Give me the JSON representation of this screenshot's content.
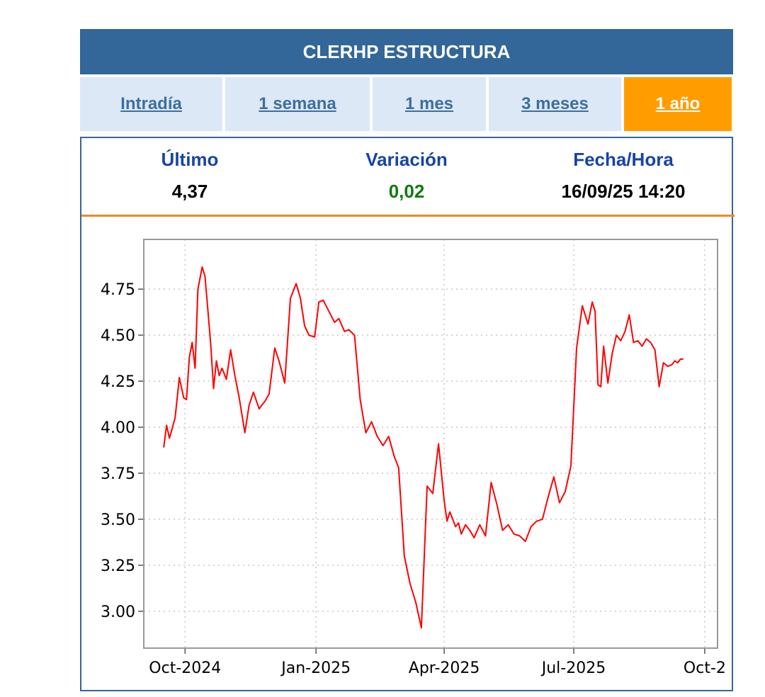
{
  "header": {
    "title": "CLERHP ESTRUCTURA"
  },
  "tabs": [
    {
      "label": "Intradía",
      "active": false
    },
    {
      "label": "1 semana",
      "active": false
    },
    {
      "label": "1 mes",
      "active": false
    },
    {
      "label": "3 meses",
      "active": false
    },
    {
      "label": "1 año",
      "active": true
    }
  ],
  "stats": {
    "last": {
      "label": "Último",
      "value": "4,37"
    },
    "change": {
      "label": "Variación",
      "value": "0,02"
    },
    "datetime": {
      "label": "Fecha/Hora",
      "value": "16/09/25 14:20"
    }
  },
  "colors": {
    "header_bg": "#336699",
    "tab_bg": "#dce8f6",
    "tab_active_bg": "#ff9d00",
    "line": "#ff0000",
    "variation_positive": "#0f7a0f",
    "separator": "#f08a24"
  },
  "chart_data": {
    "type": "line",
    "title": "",
    "xlabel": "",
    "ylabel": "",
    "grid": true,
    "ylim": [
      2.8,
      5.02
    ],
    "xlim": [
      "2024-09-02",
      "2025-10-10"
    ],
    "x_ticks": [
      {
        "date": "2024-10-01",
        "label": "Oct-2024"
      },
      {
        "date": "2025-01-01",
        "label": "Jan-2025"
      },
      {
        "date": "2025-04-01",
        "label": "Apr-2025"
      },
      {
        "date": "2025-07-01",
        "label": "Jul-2025"
      },
      {
        "date": "2025-10-01",
        "label": "Oct-2"
      }
    ],
    "y_ticks": [
      {
        "value": 3.0,
        "label": "3.00"
      },
      {
        "value": 3.25,
        "label": "3.25"
      },
      {
        "value": 3.5,
        "label": "3.50"
      },
      {
        "value": 3.75,
        "label": "3.75"
      },
      {
        "value": 4.0,
        "label": "4.00"
      },
      {
        "value": 4.25,
        "label": "4.25"
      },
      {
        "value": 4.5,
        "label": "4.50"
      },
      {
        "value": 4.75,
        "label": "4.75"
      }
    ],
    "series": [
      {
        "x": [
          "2024-09-16",
          "2024-09-18",
          "2024-09-20",
          "2024-09-24",
          "2024-09-27",
          "2024-09-30",
          "2024-10-02",
          "2024-10-04",
          "2024-10-06",
          "2024-10-08",
          "2024-10-10",
          "2024-10-13",
          "2024-10-15",
          "2024-10-17",
          "2024-10-19",
          "2024-10-21",
          "2024-10-23",
          "2024-10-25",
          "2024-10-27",
          "2024-10-30",
          "2024-11-02",
          "2024-11-05",
          "2024-11-08",
          "2024-11-12",
          "2024-11-15",
          "2024-11-18",
          "2024-11-22",
          "2024-11-26",
          "2024-11-29",
          "2024-12-03",
          "2024-12-06",
          "2024-12-10",
          "2024-12-14",
          "2024-12-18",
          "2024-12-21",
          "2024-12-24",
          "2024-12-27",
          "2024-12-31",
          "2025-01-03",
          "2025-01-06",
          "2025-01-10",
          "2025-01-14",
          "2025-01-17",
          "2025-01-21",
          "2025-01-24",
          "2025-01-28",
          "2025-02-01",
          "2025-02-05",
          "2025-02-09",
          "2025-02-13",
          "2025-02-17",
          "2025-02-21",
          "2025-02-25",
          "2025-02-28",
          "2025-03-04",
          "2025-03-08",
          "2025-03-12",
          "2025-03-16",
          "2025-03-20",
          "2025-03-24",
          "2025-03-28",
          "2025-04-01",
          "2025-04-03",
          "2025-04-05",
          "2025-04-07",
          "2025-04-09",
          "2025-04-11",
          "2025-04-13",
          "2025-04-16",
          "2025-04-19",
          "2025-04-22",
          "2025-04-26",
          "2025-04-30",
          "2025-05-04",
          "2025-05-08",
          "2025-05-12",
          "2025-05-16",
          "2025-05-20",
          "2025-05-24",
          "2025-05-28",
          "2025-06-01",
          "2025-06-05",
          "2025-06-09",
          "2025-06-13",
          "2025-06-17",
          "2025-06-21",
          "2025-06-25",
          "2025-06-29",
          "2025-07-03",
          "2025-07-07",
          "2025-07-11",
          "2025-07-14",
          "2025-07-16",
          "2025-07-18",
          "2025-07-20",
          "2025-07-22",
          "2025-07-25",
          "2025-07-28",
          "2025-07-31",
          "2025-08-03",
          "2025-08-06",
          "2025-08-09",
          "2025-08-12",
          "2025-08-15",
          "2025-08-18",
          "2025-08-21",
          "2025-08-24",
          "2025-08-27",
          "2025-08-30",
          "2025-09-02",
          "2025-09-05",
          "2025-09-08",
          "2025-09-10",
          "2025-09-12",
          "2025-09-14",
          "2025-09-16"
        ],
        "values": [
          3.89,
          4.01,
          3.94,
          4.05,
          4.27,
          4.16,
          4.15,
          4.38,
          4.46,
          4.32,
          4.75,
          4.87,
          4.82,
          4.64,
          4.45,
          4.21,
          4.36,
          4.28,
          4.32,
          4.26,
          4.42,
          4.28,
          4.16,
          3.97,
          4.12,
          4.19,
          4.1,
          4.14,
          4.18,
          4.43,
          4.36,
          4.24,
          4.7,
          4.78,
          4.7,
          4.55,
          4.5,
          4.49,
          4.68,
          4.69,
          4.63,
          4.57,
          4.59,
          4.52,
          4.53,
          4.5,
          4.15,
          3.97,
          4.03,
          3.95,
          3.9,
          3.95,
          3.84,
          3.78,
          3.3,
          3.15,
          3.05,
          2.91,
          3.68,
          3.64,
          3.91,
          3.6,
          3.49,
          3.54,
          3.5,
          3.46,
          3.48,
          3.42,
          3.47,
          3.44,
          3.4,
          3.47,
          3.41,
          3.7,
          3.58,
          3.44,
          3.47,
          3.42,
          3.41,
          3.38,
          3.46,
          3.49,
          3.5,
          3.62,
          3.73,
          3.59,
          3.65,
          3.79,
          4.43,
          4.66,
          4.56,
          4.68,
          4.63,
          4.23,
          4.22,
          4.44,
          4.24,
          4.4,
          4.5,
          4.47,
          4.52,
          4.61,
          4.46,
          4.47,
          4.44,
          4.48,
          4.46,
          4.42,
          4.22,
          4.35,
          4.33,
          4.34,
          4.36,
          4.35,
          4.37,
          4.37
        ]
      }
    ]
  }
}
